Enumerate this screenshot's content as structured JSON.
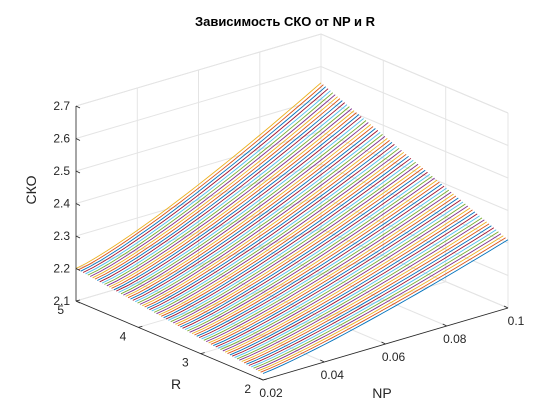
{
  "chart_data": {
    "type": "surface-lines",
    "title": "Зависимость СКО от NP и R",
    "xlabel": "NP",
    "ylabel": "R",
    "zlabel": "СКО",
    "x_ticks": [
      "0.02",
      "0.04",
      "0.06",
      "0.08",
      "0.1"
    ],
    "y_ticks": [
      "2",
      "3",
      "4",
      "5"
    ],
    "z_ticks": [
      "2.1",
      "2.2",
      "2.3",
      "2.4",
      "2.5",
      "2.6",
      "2.7"
    ],
    "xlim": [
      0.02,
      0.1
    ],
    "ylim": [
      2,
      5
    ],
    "zlim": [
      2.1,
      2.7
    ],
    "grid": true,
    "corner_values": {
      "np_0.02_r_2": 2.12,
      "np_0.02_r_5": 2.2,
      "np_0.1_r_2": 2.31,
      "np_0.1_r_5": 2.55
    },
    "line_count": 80,
    "line_colors": [
      "#0072bd",
      "#d95319",
      "#edb120",
      "#7e2f8e",
      "#77ac30",
      "#4dbeee",
      "#a2142f"
    ]
  }
}
